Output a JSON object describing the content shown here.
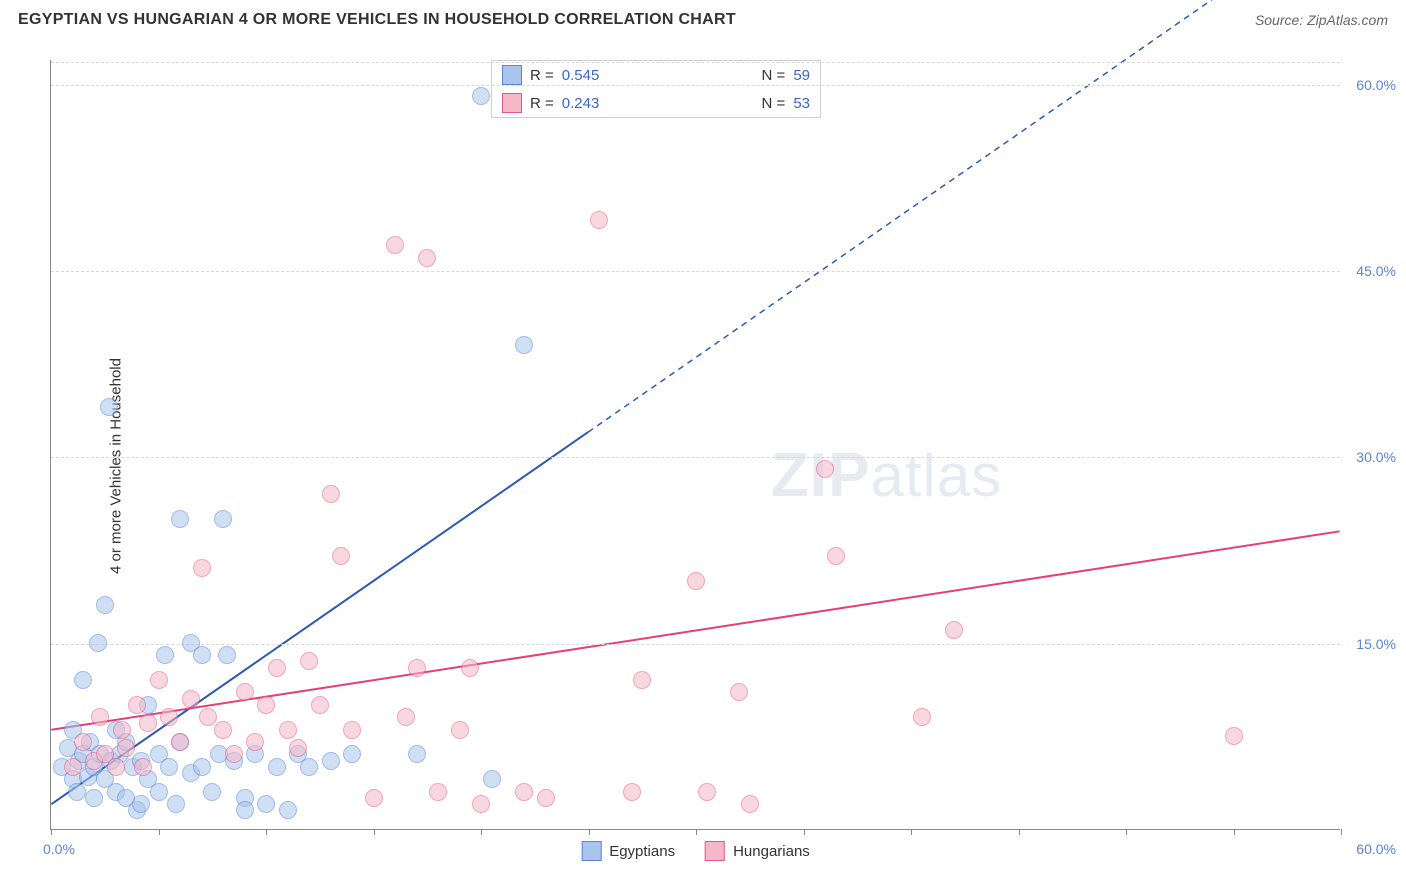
{
  "header": {
    "title": "EGYPTIAN VS HUNGARIAN 4 OR MORE VEHICLES IN HOUSEHOLD CORRELATION CHART",
    "source": "Source: ZipAtlas.com"
  },
  "y_axis_label": "4 or more Vehicles in Household",
  "watermark": {
    "bold": "ZIP",
    "rest": "atlas"
  },
  "chart": {
    "type": "scatter",
    "xlim": [
      0,
      60
    ],
    "ylim": [
      0,
      62
    ],
    "background_color": "#ffffff",
    "grid_color": "#d8d8d8",
    "axis_color": "#888888",
    "y_gridlines": [
      15,
      30,
      45,
      60
    ],
    "y_tick_labels": [
      "15.0%",
      "30.0%",
      "45.0%",
      "60.0%"
    ],
    "x_ticks": [
      0,
      5,
      10,
      15,
      20,
      25,
      30,
      35,
      40,
      45,
      50,
      55,
      60
    ],
    "x_axis_labels": [
      {
        "value": 0,
        "text": "0.0%"
      },
      {
        "value": 60,
        "text": "60.0%"
      }
    ],
    "point_radius": 9,
    "point_opacity": 0.55,
    "series": [
      {
        "name": "Egyptians",
        "color_fill": "#a8c5ec",
        "color_stroke": "#5b84d6",
        "r": "0.545",
        "n": "59",
        "trend": {
          "x1": 0,
          "y1": 2,
          "x2": 25,
          "y2": 32,
          "dash_extend_to_x": 55,
          "dash_extend_to_y": 68,
          "stroke": "#2c59b3",
          "width": 2
        },
        "points": [
          [
            0.5,
            5
          ],
          [
            0.8,
            6.5
          ],
          [
            1,
            4
          ],
          [
            1,
            8
          ],
          [
            1.2,
            3
          ],
          [
            1.3,
            5.5
          ],
          [
            1.5,
            6
          ],
          [
            1.5,
            12
          ],
          [
            1.7,
            4.2
          ],
          [
            1.8,
            7
          ],
          [
            2,
            5
          ],
          [
            2,
            2.5
          ],
          [
            2.2,
            15
          ],
          [
            2.3,
            6
          ],
          [
            2.5,
            4
          ],
          [
            2.5,
            18
          ],
          [
            2.7,
            34
          ],
          [
            2.8,
            5.5
          ],
          [
            3,
            3
          ],
          [
            3,
            8
          ],
          [
            3.2,
            6
          ],
          [
            3.5,
            2.5
          ],
          [
            3.5,
            7
          ],
          [
            3.8,
            5
          ],
          [
            4,
            1.5
          ],
          [
            4.2,
            5.5
          ],
          [
            4.5,
            4
          ],
          [
            4.5,
            10
          ],
          [
            5,
            6
          ],
          [
            5,
            3
          ],
          [
            5.3,
            14
          ],
          [
            5.5,
            5
          ],
          [
            5.8,
            2
          ],
          [
            6,
            25
          ],
          [
            6,
            7
          ],
          [
            6.5,
            4.5
          ],
          [
            6.5,
            15
          ],
          [
            7,
            5
          ],
          [
            7,
            14
          ],
          [
            7.5,
            3
          ],
          [
            7.8,
            6
          ],
          [
            8,
            25
          ],
          [
            8.2,
            14
          ],
          [
            8.5,
            5.5
          ],
          [
            9,
            2.5
          ],
          [
            9.5,
            6
          ],
          [
            10,
            2
          ],
          [
            10.5,
            5
          ],
          [
            11,
            1.5
          ],
          [
            11.5,
            6
          ],
          [
            12,
            5
          ],
          [
            13,
            5.5
          ],
          [
            14,
            6
          ],
          [
            17,
            6
          ],
          [
            20,
            59
          ],
          [
            20.5,
            4
          ],
          [
            22,
            39
          ],
          [
            9,
            1.5
          ],
          [
            4.2,
            2
          ]
        ]
      },
      {
        "name": "Hungarians",
        "color_fill": "#f5b8c8",
        "color_stroke": "#e65a87",
        "r": "0.243",
        "n": "53",
        "trend": {
          "x1": 0,
          "y1": 8,
          "x2": 60,
          "y2": 24,
          "stroke": "#e44077",
          "width": 2
        },
        "points": [
          [
            1,
            5
          ],
          [
            1.5,
            7
          ],
          [
            2,
            5.5
          ],
          [
            2.3,
            9
          ],
          [
            2.5,
            6
          ],
          [
            3,
            5
          ],
          [
            3.3,
            8
          ],
          [
            3.5,
            6.5
          ],
          [
            4,
            10
          ],
          [
            4.3,
            5
          ],
          [
            4.5,
            8.5
          ],
          [
            5,
            12
          ],
          [
            5.5,
            9
          ],
          [
            6,
            7
          ],
          [
            6.5,
            10.5
          ],
          [
            7,
            21
          ],
          [
            7.3,
            9
          ],
          [
            8,
            8
          ],
          [
            8.5,
            6
          ],
          [
            9,
            11
          ],
          [
            9.5,
            7
          ],
          [
            10,
            10
          ],
          [
            10.5,
            13
          ],
          [
            11,
            8
          ],
          [
            11.5,
            6.5
          ],
          [
            12,
            13.5
          ],
          [
            12.5,
            10
          ],
          [
            13,
            27
          ],
          [
            13.5,
            22
          ],
          [
            14,
            8
          ],
          [
            15,
            2.5
          ],
          [
            16,
            47
          ],
          [
            16.5,
            9
          ],
          [
            17,
            13
          ],
          [
            17.5,
            46
          ],
          [
            18,
            3
          ],
          [
            19,
            8
          ],
          [
            19.5,
            13
          ],
          [
            20,
            2
          ],
          [
            22,
            3
          ],
          [
            23,
            2.5
          ],
          [
            25.5,
            49
          ],
          [
            27,
            3
          ],
          [
            27.5,
            12
          ],
          [
            30,
            20
          ],
          [
            30.5,
            3
          ],
          [
            32,
            11
          ],
          [
            36,
            29
          ],
          [
            36.5,
            22
          ],
          [
            40.5,
            9
          ],
          [
            42,
            16
          ],
          [
            55,
            7.5
          ],
          [
            32.5,
            2
          ]
        ]
      }
    ]
  },
  "legend_top": {
    "r_label": "R =",
    "n_label": "N ="
  },
  "legend_bottom": [
    {
      "label": "Egyptians",
      "fill": "#a8c5ec",
      "stroke": "#5b84d6"
    },
    {
      "label": "Hungarians",
      "fill": "#f5b8c8",
      "stroke": "#e65a87"
    }
  ]
}
